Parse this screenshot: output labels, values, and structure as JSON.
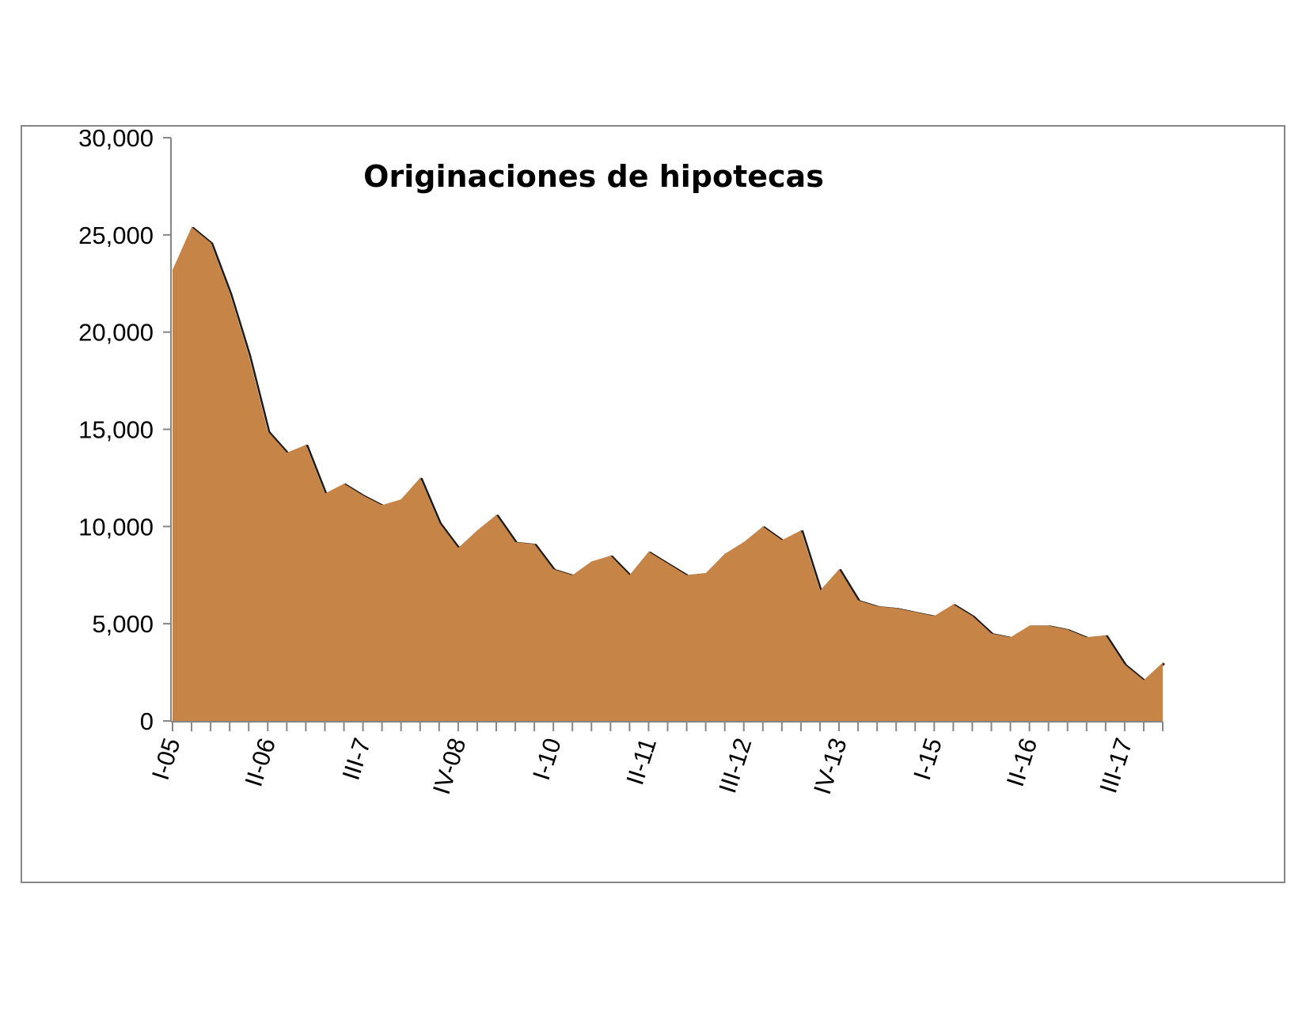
{
  "chart_data": {
    "type": "area",
    "title": "Originaciones de hipotecas",
    "xlabel": "",
    "ylabel": "",
    "ylim": [
      0,
      30000
    ],
    "yticks": [
      0,
      5000,
      10000,
      15000,
      20000,
      25000,
      30000
    ],
    "ytick_labels": [
      "0",
      "5,000",
      "10,000",
      "15,000",
      "20,000",
      "25,000",
      "30,000"
    ],
    "x_tick_labels": [
      {
        "index": 0,
        "label": "I-05"
      },
      {
        "index": 5,
        "label": "II-06"
      },
      {
        "index": 10,
        "label": "III-7"
      },
      {
        "index": 15,
        "label": "IV-08"
      },
      {
        "index": 20,
        "label": "I-10"
      },
      {
        "index": 25,
        "label": "II-11"
      },
      {
        "index": 30,
        "label": "III-12"
      },
      {
        "index": 35,
        "label": "IV-13"
      },
      {
        "index": 40,
        "label": "I-15"
      },
      {
        "index": 45,
        "label": "II-16"
      },
      {
        "index": 50,
        "label": "III-17"
      }
    ],
    "grid": false,
    "legend": "none",
    "fill_color": "#C68447",
    "series": [
      {
        "values": [
          23200,
          25400,
          24600,
          22000,
          18800,
          14900,
          13800,
          14200,
          11700,
          12200,
          11600,
          11100,
          11400,
          12500,
          10200,
          8900,
          9800,
          10600,
          9200,
          9100,
          7800,
          7500,
          8200,
          8500,
          7500,
          8700,
          8100,
          7500,
          7600,
          8600,
          9200,
          10000,
          9300,
          9800,
          6700,
          7800,
          6200,
          5900,
          5800,
          5600,
          5400,
          6000,
          5400,
          4500,
          4300,
          4900,
          4900,
          4700,
          4300,
          4400,
          2900,
          2100,
          3000
        ]
      }
    ]
  }
}
